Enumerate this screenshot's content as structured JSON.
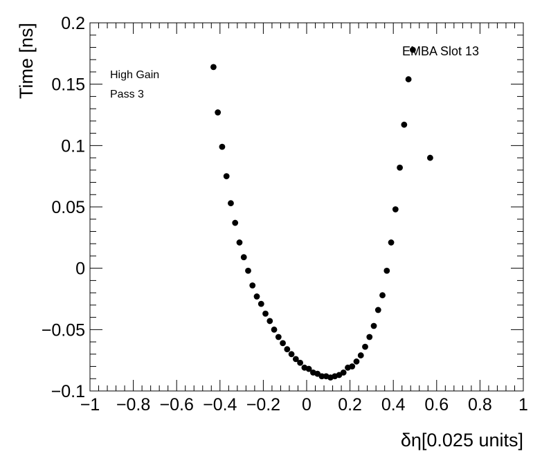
{
  "chart_data": {
    "type": "scatter",
    "title": "",
    "xlabel": "δη[0.025 units]",
    "ylabel": "Time [ns]",
    "xlim": [
      -1,
      1
    ],
    "ylim": [
      -0.1,
      0.2
    ],
    "x_ticks": [
      -1,
      -0.8,
      -0.6,
      -0.4,
      -0.2,
      0,
      0.2,
      0.4,
      0.6,
      0.8,
      1
    ],
    "x_tick_labels": [
      "−1",
      "−0.8",
      "−0.6",
      "−0.4",
      "−0.2",
      "0",
      "0.2",
      "0.4",
      "0.6",
      "0.8",
      "1"
    ],
    "y_ticks": [
      -0.1,
      -0.05,
      0,
      0.05,
      0.1,
      0.15,
      0.2
    ],
    "y_tick_labels": [
      "−0.1",
      "−0.05",
      "0",
      "0.05",
      "0.1",
      "0.15",
      "0.2"
    ],
    "annotations": {
      "gain": "High Gain",
      "pass": "Pass 3",
      "slot": "EMBA Slot 13"
    },
    "series": [
      {
        "name": "points",
        "x": [
          -0.43,
          -0.41,
          -0.39,
          -0.37,
          -0.35,
          -0.33,
          -0.31,
          -0.29,
          -0.27,
          -0.25,
          -0.23,
          -0.21,
          -0.19,
          -0.17,
          -0.15,
          -0.13,
          -0.11,
          -0.09,
          -0.07,
          -0.05,
          -0.03,
          -0.01,
          0.01,
          0.03,
          0.05,
          0.07,
          0.09,
          0.11,
          0.13,
          0.15,
          0.17,
          0.19,
          0.21,
          0.23,
          0.25,
          0.27,
          0.29,
          0.31,
          0.33,
          0.35,
          0.37,
          0.39,
          0.41,
          0.43,
          0.45,
          0.47,
          0.49,
          0.57
        ],
        "y": [
          0.164,
          0.127,
          0.099,
          0.075,
          0.053,
          0.037,
          0.021,
          0.009,
          -0.002,
          -0.014,
          -0.023,
          -0.029,
          -0.037,
          -0.043,
          -0.05,
          -0.056,
          -0.061,
          -0.066,
          -0.07,
          -0.074,
          -0.077,
          -0.081,
          -0.082,
          -0.085,
          -0.086,
          -0.088,
          -0.088,
          -0.089,
          -0.088,
          -0.087,
          -0.085,
          -0.081,
          -0.08,
          -0.076,
          -0.071,
          -0.064,
          -0.056,
          -0.047,
          -0.034,
          -0.022,
          -0.002,
          0.021,
          0.048,
          0.082,
          0.117,
          0.154,
          0.178,
          0.09
        ]
      }
    ]
  }
}
